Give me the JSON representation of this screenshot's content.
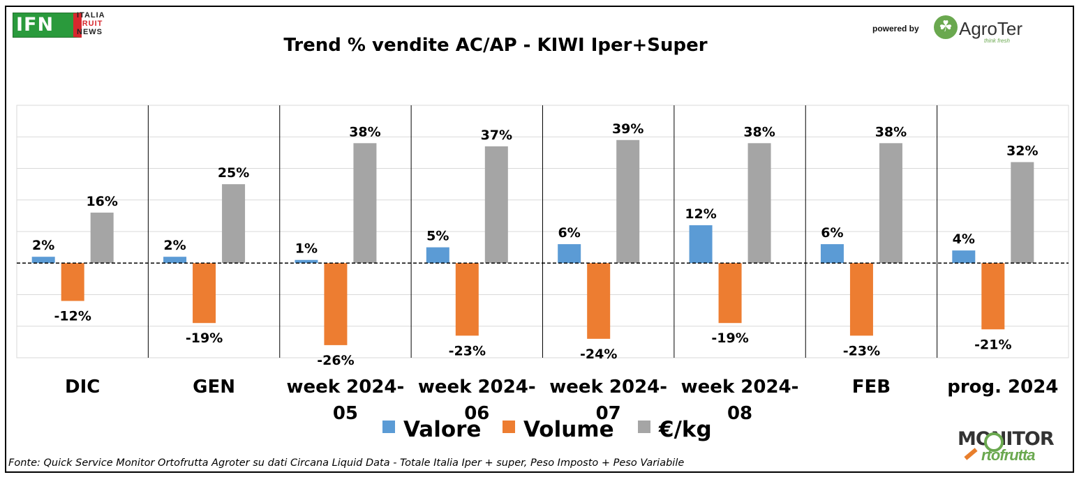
{
  "header": {
    "ifn_logo": {
      "main": "IFN",
      "line1": "ITALIA",
      "line2": "FRUIT",
      "line3": "NEWS"
    },
    "powered_by": "powered by",
    "agroter": {
      "name": "AgroTer",
      "tagline": "think fresh"
    }
  },
  "footer": {
    "source": "Fonte: Quick Service Monitor Ortofrutta Agroter su dati Circana Liquid Data - Totale Italia Iper + super, Peso Imposto + Peso Variabile",
    "monitor_logo": {
      "line1": "MONITOR",
      "line2": "rtofrutta"
    }
  },
  "colors": {
    "valore": "#5b9bd5",
    "volume": "#ed7d31",
    "eurkg": "#a5a5a5"
  },
  "chart_data": {
    "type": "bar",
    "title": "Trend % vendite AC/AP - KIWI Iper+Super",
    "categories": [
      [
        "DIC"
      ],
      [
        "GEN"
      ],
      [
        "week 2024-",
        "05"
      ],
      [
        "week 2024-",
        "06"
      ],
      [
        "week 2024-",
        "07"
      ],
      [
        "week 2024-",
        "08"
      ],
      [
        "FEB"
      ],
      [
        "prog. 2024"
      ]
    ],
    "series": [
      {
        "name": "Valore",
        "values": [
          2,
          2,
          1,
          5,
          6,
          12,
          6,
          4
        ],
        "labels": [
          "2%",
          "2%",
          "1%",
          "5%",
          "6%",
          "12%",
          "6%",
          "4%"
        ]
      },
      {
        "name": "Volume",
        "values": [
          -12,
          -19,
          -26,
          -23,
          -24,
          -19,
          -23,
          -21
        ],
        "labels": [
          "-12%",
          "-19%",
          "-26%",
          "-23%",
          "-24%",
          "-19%",
          "-23%",
          "-21%"
        ]
      },
      {
        "name": "€/kg",
        "values": [
          16,
          25,
          38,
          37,
          39,
          38,
          38,
          32
        ],
        "labels": [
          "16%",
          "25%",
          "38%",
          "37%",
          "39%",
          "38%",
          "38%",
          "32%"
        ]
      }
    ],
    "ylim": [
      -30,
      50
    ],
    "grid": true,
    "legend": "bottom"
  }
}
